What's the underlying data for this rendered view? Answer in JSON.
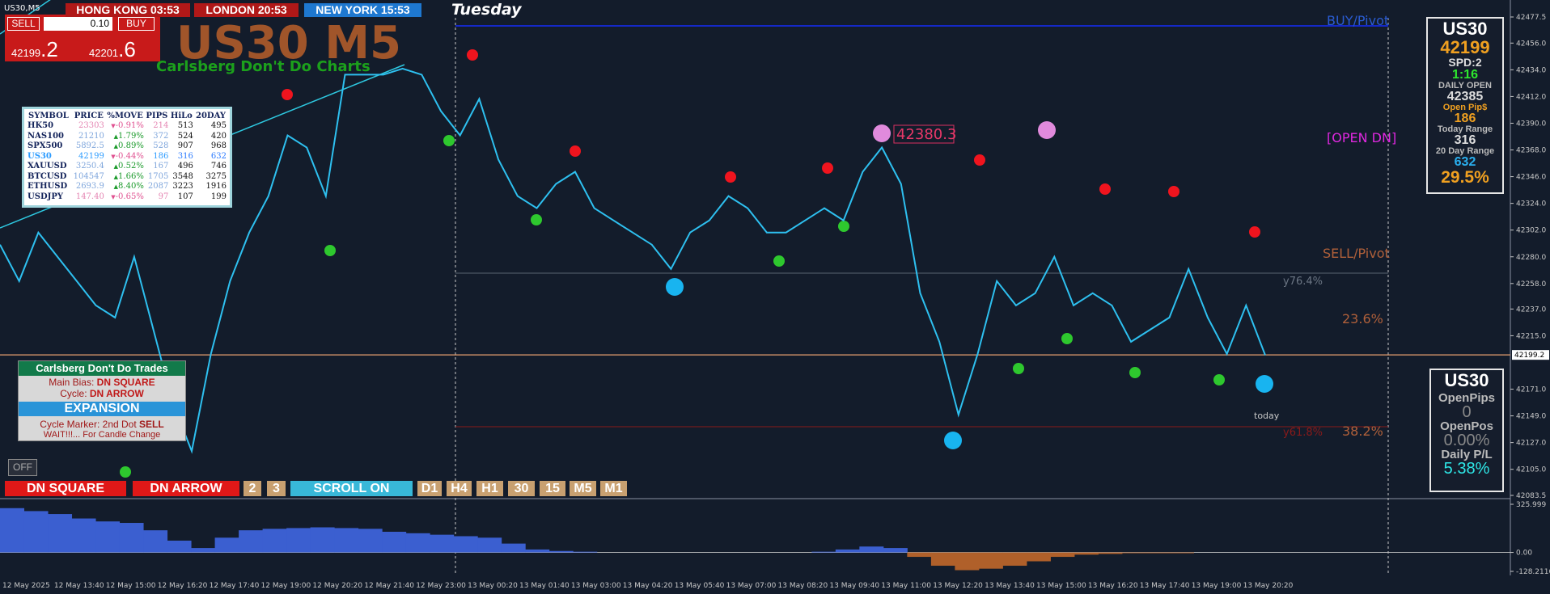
{
  "window": {
    "symbol_label": "US30,M5",
    "day": "Tuesday"
  },
  "trade_panel": {
    "sell": "SELL",
    "lot": "0.10",
    "buy": "BUY",
    "bid_main": "42199",
    "bid_frac": ".2",
    "ask_main": "42201",
    "ask_frac": ".6"
  },
  "clocks": [
    "HONG KONG 03:53",
    "LONDON 20:53",
    "NEW YORK 15:53"
  ],
  "header": {
    "title": "US30 M5",
    "subtitle": "Carlsberg Don't Do Charts"
  },
  "symbol_table": {
    "columns": [
      "SYMBOL",
      "PRICE",
      "%MOVE",
      "PIPS",
      "HiLo",
      "20DAY"
    ],
    "rows": [
      [
        "HK50",
        "23303",
        "-0.91%",
        "214",
        "513",
        "495"
      ],
      [
        "NAS100",
        "21210",
        "1.79%",
        "372",
        "524",
        "420"
      ],
      [
        "SPX500",
        "5892.5",
        "0.89%",
        "528",
        "907",
        "968"
      ],
      [
        "US30",
        "42199",
        "-0.44%",
        "186",
        "316",
        "632"
      ],
      [
        "XAUUSD",
        "3250.4",
        "0.52%",
        "167",
        "496",
        "746"
      ],
      [
        "BTCUSD",
        "104547",
        "1.66%",
        "1705",
        "3548",
        "3275"
      ],
      [
        "ETHUSD",
        "2693.9",
        "8.40%",
        "2087",
        "3223",
        "1916"
      ],
      [
        "USDJPY",
        "147.40",
        "-0.65%",
        "97",
        "107",
        "199"
      ]
    ]
  },
  "levels": {
    "buy_pivot": "BUY/Pivot",
    "open_dn": "[OPEN DN]",
    "sell_pivot": "SELL/Pivot",
    "fib_236": "23.6%",
    "fib_382": "38.2%",
    "y764": "y76.4%",
    "y618": "y61.8%",
    "marker": "42380.3",
    "today": "today"
  },
  "info_panel": {
    "symbol": "US30",
    "price": "42199",
    "spread": "SPD:2",
    "timer": "1:16",
    "daily_open_label": "DAILY OPEN",
    "daily_open": "42385",
    "open_pips_label": "Open Pip$",
    "open_pips": "186",
    "today_range_label": "Today Range",
    "today_range": "316",
    "day20_range_label": "20 Day Range",
    "day20_range": "632",
    "ratio": "29.5%"
  },
  "pl_panel": {
    "symbol": "US30",
    "open_pips_label": "OpenPips",
    "open_pips": "0",
    "open_pos_label": "OpenPos",
    "open_pos": "0.00%",
    "daily_pl_label": "Daily P/L",
    "daily_pl": "5.38%"
  },
  "trade_panel_left": {
    "title": "Carlsberg Don't Do Trades",
    "bias_label": "Main Bias:",
    "bias": "DN SQUARE",
    "cycle_label": "Cycle:",
    "cycle": "DN ARROW",
    "state": "EXPANSION",
    "marker_label": "Cycle Marker: 2nd Dot",
    "marker": "SELL",
    "note": "WAIT!!!... For Candle Change"
  },
  "off_button": "OFF",
  "buttons": [
    "DN SQUARE",
    "DN ARROW",
    "2",
    "3",
    "SCROLL ON",
    "D1",
    "H4",
    "H1",
    "30",
    "15",
    "M5",
    "M1"
  ],
  "chart": {
    "ylim": [
      42083.5,
      42477.5
    ],
    "yticks": [
      {
        "value": 42477.5,
        "label": "42477.5"
      },
      {
        "value": 42456,
        "label": "42456.0"
      },
      {
        "value": 42434,
        "label": "42434.0"
      },
      {
        "value": 42412,
        "label": "42412.0"
      },
      {
        "value": 42390,
        "label": "42390.0"
      },
      {
        "value": 42368,
        "label": "42368.0"
      },
      {
        "value": 42346,
        "label": "42346.0"
      },
      {
        "value": 42324,
        "label": "42324.0"
      },
      {
        "value": 42302,
        "label": "42302.0"
      },
      {
        "value": 42280,
        "label": "42280.0"
      },
      {
        "value": 42258,
        "label": "42258.0"
      },
      {
        "value": 42237,
        "label": "42237.0"
      },
      {
        "value": 42215,
        "label": "42215.0"
      },
      {
        "value": 42171,
        "label": "42171.0"
      },
      {
        "value": 42149,
        "label": "42149.0"
      },
      {
        "value": 42127,
        "label": "42127.0"
      },
      {
        "value": 42105,
        "label": "42105.0"
      },
      {
        "value": 42083.5,
        "label": "42083.5"
      }
    ],
    "current_price": 42199.2,
    "close": [
      42290,
      42260,
      42300,
      42280,
      42260,
      42240,
      42230,
      42280,
      42220,
      42160,
      42120,
      42200,
      42260,
      42300,
      42330,
      42380,
      42370,
      42330,
      42430,
      42430,
      42430,
      42435,
      42430,
      42400,
      42380,
      42410,
      42360,
      42330,
      42320,
      42340,
      42350,
      42320,
      42310,
      42300,
      42290,
      42270,
      42300,
      42310,
      42330,
      42320,
      42300,
      42300,
      42310,
      42320,
      42310,
      42350,
      42370,
      42340,
      42250,
      42210,
      42150,
      42200,
      42260,
      42240,
      42250,
      42280,
      42240,
      42250,
      42240,
      42210,
      42220,
      42230,
      42270,
      42230,
      42200,
      42240,
      42199
    ],
    "times": [
      "12 May 2025",
      "12 May 13:40",
      "12 May 15:00",
      "12 May 16:20",
      "12 May 17:40",
      "12 May 19:00",
      "12 May 20:20",
      "12 May 21:40",
      "12 May 23:00",
      "13 May 00:20",
      "13 May 01:40",
      "13 May 03:00",
      "13 May 04:20",
      "13 May 05:40",
      "13 May 07:00",
      "13 May 08:20",
      "13 May 09:40",
      "13 May 11:00",
      "13 May 12:20",
      "13 May 13:40",
      "13 May 15:00",
      "13 May 16:20",
      "13 May 17:40",
      "13 May 19:00",
      "13 May 20:20"
    ]
  },
  "indicator": {
    "ylim": [
      -128.2116,
      325.999
    ],
    "yticks": [
      325.999,
      {
        "value": 0,
        "label": "0.00"
      },
      -128.2116
    ],
    "values": [
      300,
      280,
      260,
      230,
      210,
      200,
      150,
      80,
      30,
      100,
      150,
      160,
      165,
      170,
      165,
      160,
      140,
      130,
      120,
      110,
      100,
      60,
      20,
      10,
      5,
      0,
      0,
      0,
      0,
      0,
      0,
      0,
      0,
      0,
      5,
      20,
      40,
      30,
      -30,
      -90,
      -120,
      -110,
      -90,
      -60,
      -30,
      -15,
      -10,
      -5,
      -5,
      -5,
      0,
      0,
      0
    ]
  }
}
